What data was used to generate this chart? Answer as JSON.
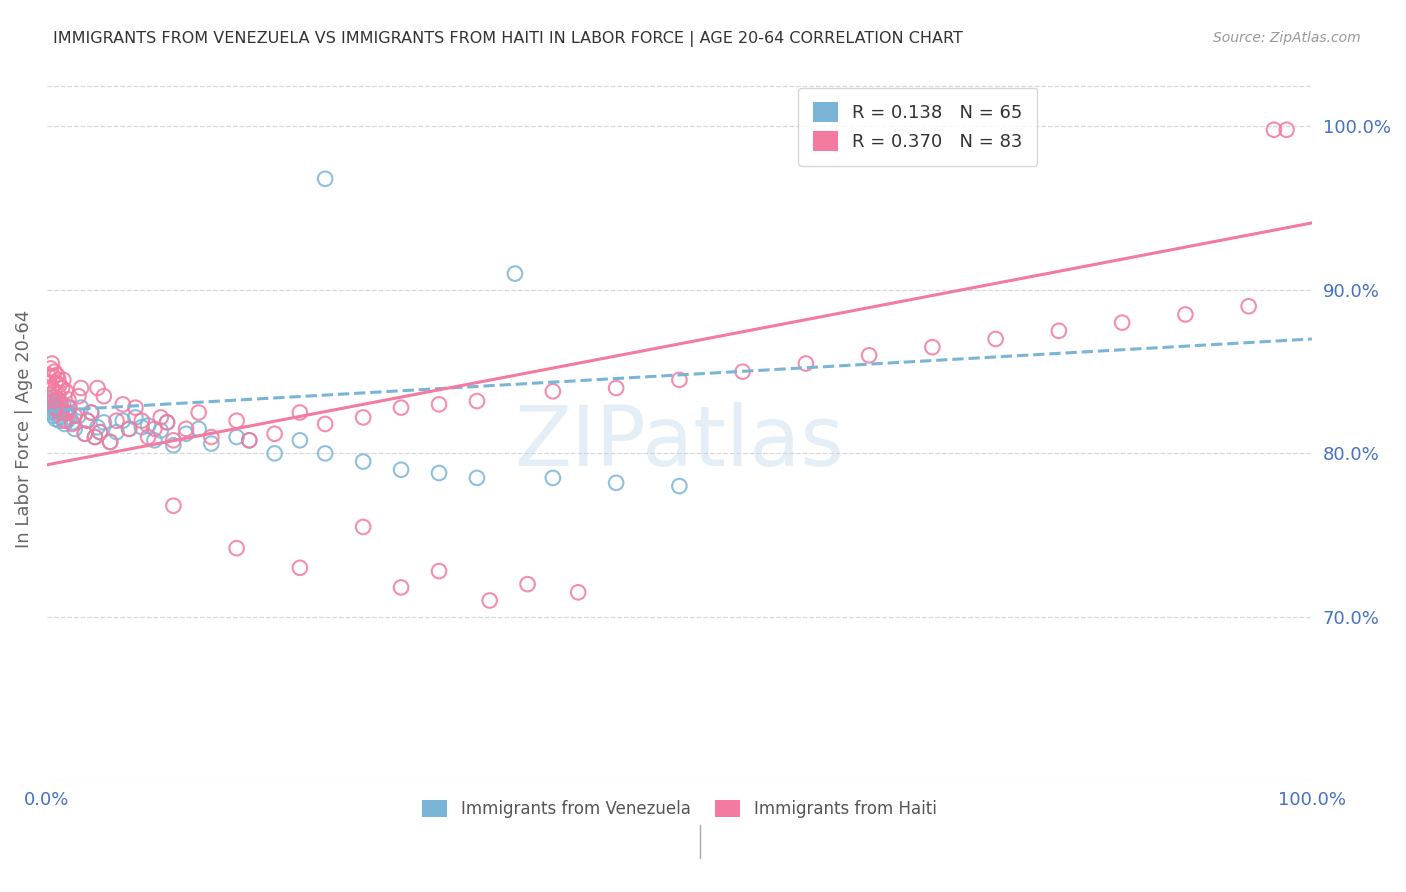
{
  "title": "IMMIGRANTS FROM VENEZUELA VS IMMIGRANTS FROM HAITI IN LABOR FORCE | AGE 20-64 CORRELATION CHART",
  "source": "Source: ZipAtlas.com",
  "ylabel": "In Labor Force | Age 20-64",
  "xlim": [
    0.0,
    1.0
  ],
  "ylim": [
    0.6,
    1.03
  ],
  "yticks": [
    0.7,
    0.8,
    0.9,
    1.0
  ],
  "watermark": "ZIPatlas",
  "venezuela_color": "#7ab5d8",
  "haiti_color": "#f47aa0",
  "venezuela_R": 0.138,
  "venezuela_N": 65,
  "haiti_R": 0.37,
  "haiti_N": 83,
  "background_color": "#ffffff",
  "grid_color": "#d8d8d8",
  "tick_color": "#4472c4",
  "title_color": "#333333",
  "ylabel_color": "#666666",
  "ven_x": [
    0.001,
    0.002,
    0.003,
    0.003,
    0.004,
    0.004,
    0.005,
    0.005,
    0.006,
    0.006,
    0.007,
    0.007,
    0.008,
    0.008,
    0.009,
    0.009,
    0.01,
    0.01,
    0.011,
    0.012,
    0.013,
    0.014,
    0.015,
    0.016,
    0.017,
    0.018,
    0.02,
    0.022,
    0.025,
    0.027,
    0.03,
    0.032,
    0.035,
    0.038,
    0.04,
    0.042,
    0.045,
    0.05,
    0.055,
    0.06,
    0.065,
    0.07,
    0.075,
    0.08,
    0.085,
    0.09,
    0.095,
    0.1,
    0.11,
    0.12,
    0.13,
    0.15,
    0.16,
    0.18,
    0.2,
    0.22,
    0.25,
    0.28,
    0.31,
    0.34,
    0.4,
    0.45,
    0.5,
    0.22,
    0.37
  ],
  "ven_y": [
    0.828,
    0.833,
    0.825,
    0.831,
    0.826,
    0.834,
    0.823,
    0.829,
    0.827,
    0.832,
    0.821,
    0.83,
    0.824,
    0.828,
    0.826,
    0.833,
    0.82,
    0.83,
    0.822,
    0.827,
    0.83,
    0.818,
    0.825,
    0.82,
    0.828,
    0.822,
    0.819,
    0.815,
    0.823,
    0.828,
    0.812,
    0.82,
    0.825,
    0.81,
    0.816,
    0.813,
    0.819,
    0.807,
    0.813,
    0.82,
    0.815,
    0.822,
    0.816,
    0.817,
    0.808,
    0.814,
    0.819,
    0.805,
    0.812,
    0.815,
    0.806,
    0.81,
    0.808,
    0.8,
    0.808,
    0.8,
    0.795,
    0.79,
    0.788,
    0.785,
    0.785,
    0.782,
    0.78,
    0.968,
    0.91
  ],
  "hai_x": [
    0.001,
    0.002,
    0.003,
    0.003,
    0.004,
    0.004,
    0.005,
    0.005,
    0.006,
    0.006,
    0.007,
    0.007,
    0.008,
    0.008,
    0.009,
    0.009,
    0.01,
    0.01,
    0.011,
    0.012,
    0.013,
    0.014,
    0.015,
    0.016,
    0.017,
    0.018,
    0.02,
    0.022,
    0.025,
    0.027,
    0.03,
    0.032,
    0.035,
    0.038,
    0.04,
    0.042,
    0.045,
    0.05,
    0.055,
    0.06,
    0.065,
    0.07,
    0.075,
    0.08,
    0.085,
    0.09,
    0.095,
    0.1,
    0.11,
    0.12,
    0.13,
    0.15,
    0.16,
    0.18,
    0.2,
    0.22,
    0.25,
    0.28,
    0.31,
    0.34,
    0.4,
    0.45,
    0.5,
    0.55,
    0.6,
    0.65,
    0.7,
    0.75,
    0.8,
    0.85,
    0.9,
    0.95,
    0.97,
    0.1,
    0.15,
    0.2,
    0.25,
    0.28,
    0.31,
    0.35,
    0.38,
    0.42,
    0.98
  ],
  "hai_y": [
    0.848,
    0.843,
    0.836,
    0.852,
    0.84,
    0.855,
    0.832,
    0.847,
    0.838,
    0.85,
    0.828,
    0.843,
    0.833,
    0.848,
    0.836,
    0.845,
    0.825,
    0.842,
    0.83,
    0.84,
    0.845,
    0.82,
    0.838,
    0.825,
    0.833,
    0.828,
    0.818,
    0.823,
    0.835,
    0.84,
    0.812,
    0.82,
    0.825,
    0.81,
    0.84,
    0.813,
    0.835,
    0.807,
    0.82,
    0.83,
    0.815,
    0.828,
    0.82,
    0.81,
    0.815,
    0.822,
    0.819,
    0.808,
    0.815,
    0.825,
    0.81,
    0.82,
    0.808,
    0.812,
    0.825,
    0.818,
    0.822,
    0.828,
    0.83,
    0.832,
    0.838,
    0.84,
    0.845,
    0.85,
    0.855,
    0.86,
    0.865,
    0.87,
    0.875,
    0.88,
    0.885,
    0.89,
    0.998,
    0.768,
    0.742,
    0.73,
    0.755,
    0.718,
    0.728,
    0.71,
    0.72,
    0.715,
    0.998
  ]
}
